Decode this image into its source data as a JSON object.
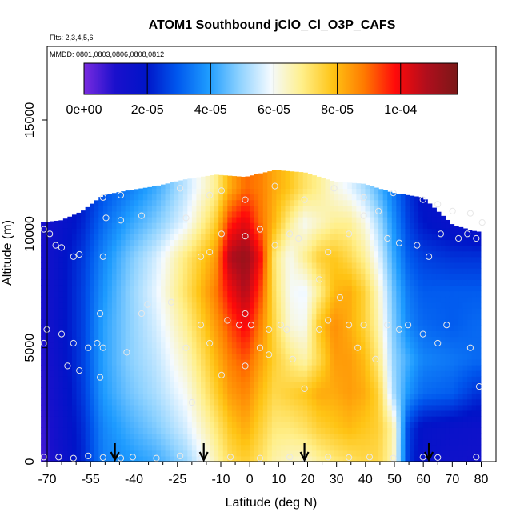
{
  "chart_data": {
    "type": "heatmap",
    "title": "ATOM1 Southbound jClO_Cl_O3P_CAFS",
    "subtitle_flights": "Flts: 2,3,4,5,6",
    "subtitle_dates": "MMDD: 0801,0803,0806,0808,0812",
    "xlabel": "Latitude (deg N)",
    "ylabel": "Altitude (m)",
    "xlim": [
      -70,
      82
    ],
    "ylim": [
      0,
      17500
    ],
    "x_ticks": [
      -70,
      -55,
      -40,
      -25,
      -10,
      0,
      10,
      20,
      30,
      40,
      50,
      60,
      70,
      80
    ],
    "x_tick_labels": [
      "-70",
      "-55",
      "-40",
      "-25",
      "-10",
      "0",
      "10",
      "20",
      "30",
      "40",
      "50",
      "60",
      "70",
      "80"
    ],
    "x_minor_ticks": [
      -65,
      -60,
      -50,
      -45,
      -35,
      -30,
      -20,
      -15,
      -5,
      5,
      15,
      25,
      35,
      45,
      55,
      65,
      75
    ],
    "y_ticks": [
      0,
      5000,
      10000,
      15000
    ],
    "y_tick_labels": [
      "0",
      "5000",
      "10000",
      "15000"
    ],
    "colorbar": {
      "min": 0,
      "max": 0.000118,
      "ticks": [
        0,
        2e-05,
        4e-05,
        6e-05,
        8e-05,
        0.0001
      ],
      "tick_labels": [
        "0e+00",
        "2e-05",
        "4e-05",
        "6e-05",
        "8e-05",
        "1e-04"
      ],
      "colors": [
        "#7a2be0",
        "#1a10cc",
        "#0014c8",
        "#0058ee",
        "#1e9cff",
        "#8ed2ff",
        "#f4faff",
        "#ffef8a",
        "#ffc414",
        "#ff7a00",
        "#ff0a0a",
        "#b00e1c",
        "#7a1818"
      ]
    },
    "grid": false,
    "legend": "colorbar top",
    "profile_top_altitude": [
      [
        -69,
        10500
      ],
      [
        -62,
        10600
      ],
      [
        -55,
        11000
      ],
      [
        -48,
        11700
      ],
      [
        -40,
        11900
      ],
      [
        -30,
        12100
      ],
      [
        -20,
        12400
      ],
      [
        -10,
        12600
      ],
      [
        0,
        12500
      ],
      [
        10,
        12800
      ],
      [
        20,
        12700
      ],
      [
        30,
        12300
      ],
      [
        40,
        12200
      ],
      [
        50,
        11800
      ],
      [
        60,
        11600
      ],
      [
        70,
        10400
      ],
      [
        78,
        10100
      ]
    ],
    "grid_lat": [
      -69,
      -62,
      -55,
      -48,
      -40,
      -30,
      -20,
      -10,
      -5,
      0,
      5,
      10,
      15,
      20,
      25,
      30,
      35,
      40,
      45,
      50,
      55,
      60,
      70,
      78
    ],
    "grid_alt": [
      0,
      1500,
      3000,
      4500,
      6000,
      7500,
      9000,
      10500,
      12000
    ],
    "values": [
      [
        5e-06,
        1.4e-05,
        2.2e-05,
        3.5e-05,
        3.8e-05,
        4.2e-05,
        5e-05,
        6.5e-05,
        7.3e-05,
        7.6e-05,
        7.2e-05,
        6.6e-05,
        6.4e-05,
        6.3e-05,
        6.7e-05,
        7e-05,
        7.2e-05,
        7.4e-05,
        7.4e-05,
        6.5e-05,
        2.5e-05,
        1.6e-05,
        1.4e-05,
        1.3e-05
      ],
      [
        6e-06,
        1.5e-05,
        2.3e-05,
        3.6e-05,
        4.2e-05,
        4.8e-05,
        5.6e-05,
        7e-05,
        7.8e-05,
        8.2e-05,
        7.6e-05,
        7e-05,
        7e-05,
        7.2e-05,
        7.6e-05,
        7.8e-05,
        8e-05,
        7.8e-05,
        7.6e-05,
        6.6e-05,
        2.6e-05,
        1.8e-05,
        1.6e-05,
        1.5e-05
      ],
      [
        7e-06,
        1.6e-05,
        2.5e-05,
        3.9e-05,
        4.6e-05,
        5.2e-05,
        6e-05,
        7.6e-05,
        8.4e-05,
        8.7e-05,
        8e-05,
        7.4e-05,
        7.6e-05,
        7.8e-05,
        8.2e-05,
        8.2e-05,
        8.4e-05,
        8.2e-05,
        7.6e-05,
        5.2e-05,
        3.8e-05,
        3.2e-05,
        3e-05,
        2.4e-05
      ],
      [
        8e-06,
        1.7e-05,
        2.6e-05,
        4e-05,
        4.8e-05,
        5.4e-05,
        6.4e-05,
        8e-05,
        8.8e-05,
        9.2e-05,
        8.4e-05,
        7.6e-05,
        7e-05,
        6.6e-05,
        7.4e-05,
        8.4e-05,
        8.4e-05,
        8e-05,
        7e-05,
        5e-05,
        4.2e-05,
        3.6e-05,
        3.4e-05,
        3.2e-05
      ],
      [
        9e-06,
        1.8e-05,
        2.6e-05,
        4e-05,
        4.8e-05,
        5.6e-05,
        6.8e-05,
        8.4e-05,
        9.3e-05,
        0.0001,
        8.8e-05,
        7.4e-05,
        6.2e-05,
        6e-05,
        7.8e-05,
        8.6e-05,
        8.2e-05,
        7.6e-05,
        6.6e-05,
        4.8e-05,
        3.6e-05,
        3.2e-05,
        3e-05,
        3.2e-05
      ],
      [
        1e-05,
        1.8e-05,
        2.6e-05,
        3.8e-05,
        4.8e-05,
        5.8e-05,
        7.2e-05,
        8.8e-05,
        0.0001,
        0.000108,
        9.4e-05,
        7.2e-05,
        6e-05,
        5.8e-05,
        6.8e-05,
        8e-05,
        8.2e-05,
        7.6e-05,
        6.4e-05,
        4.6e-05,
        3.4e-05,
        3e-05,
        3e-05,
        3e-05
      ],
      [
        1e-05,
        1.8e-05,
        2.5e-05,
        3.6e-05,
        4.6e-05,
        5.6e-05,
        7e-05,
        8.4e-05,
        0.000108,
        0.000113,
        0.0001,
        7e-05,
        6e-05,
        6.8e-05,
        7.6e-05,
        7.8e-05,
        7.4e-05,
        6.8e-05,
        5.8e-05,
        4.2e-05,
        3e-05,
        2.6e-05,
        2.4e-05,
        2.4e-05
      ],
      [
        1e-05,
        1.6e-05,
        2.2e-05,
        3.2e-05,
        4e-05,
        4.8e-05,
        5.8e-05,
        7.6e-05,
        9.6e-05,
        0.000102,
        9e-05,
        8e-05,
        6.8e-05,
        6e-05,
        6.4e-05,
        6.8e-05,
        6.8e-05,
        6.2e-05,
        5.2e-05,
        3.8e-05,
        2.6e-05,
        2e-05,
        1.6e-05,
        1.4e-05
      ],
      [
        1.2e-05,
        1.4e-05,
        2e-05,
        2.8e-05,
        3.4e-05,
        4.2e-05,
        5.4e-05,
        6.8e-05,
        8.2e-05,
        9e-05,
        8.8e-05,
        8.2e-05,
        7.8e-05,
        7.2e-05,
        6.8e-05,
        6.2e-05,
        5.8e-05,
        5.2e-05,
        4.4e-05,
        3.4e-05,
        2.4e-05,
        1.8e-05,
        1.4e-05,
        1.2e-05
      ]
    ],
    "observation_points": [
      [
        -68,
        200
      ],
      [
        -63,
        200
      ],
      [
        -58,
        150
      ],
      [
        -53,
        250
      ],
      [
        -48,
        180
      ],
      [
        -42,
        150
      ],
      [
        -38,
        200
      ],
      [
        -30,
        150
      ],
      [
        -22,
        250
      ],
      [
        -15,
        150
      ],
      [
        -5,
        200
      ],
      [
        5,
        150
      ],
      [
        15,
        200
      ],
      [
        20,
        150
      ],
      [
        28,
        200
      ],
      [
        35,
        180
      ],
      [
        42,
        200
      ],
      [
        50,
        150
      ],
      [
        60,
        200
      ],
      [
        65,
        180
      ],
      [
        78,
        200
      ],
      [
        -67,
        5800
      ],
      [
        -68,
        5200
      ],
      [
        -62,
        5600
      ],
      [
        -60,
        4200
      ],
      [
        -58,
        5200
      ],
      [
        -56,
        4000
      ],
      [
        -53,
        5000
      ],
      [
        -50,
        5200
      ],
      [
        -49,
        3700
      ],
      [
        -48,
        5000
      ],
      [
        -49,
        6500
      ],
      [
        -40,
        4800
      ],
      [
        -35,
        6500
      ],
      [
        -33,
        6900
      ],
      [
        -25,
        7000
      ],
      [
        -20,
        5000
      ],
      [
        -18,
        2600
      ],
      [
        -15,
        6000
      ],
      [
        -12,
        5200
      ],
      [
        -8,
        3800
      ],
      [
        -6,
        6200
      ],
      [
        -2,
        6000
      ],
      [
        0,
        6500
      ],
      [
        0,
        4200
      ],
      [
        2,
        6000
      ],
      [
        5,
        5000
      ],
      [
        8,
        5800
      ],
      [
        8,
        4700
      ],
      [
        12,
        6000
      ],
      [
        14,
        5800
      ],
      [
        16,
        4500
      ],
      [
        20,
        3200
      ],
      [
        25,
        5800
      ],
      [
        28,
        6200
      ],
      [
        32,
        7200
      ],
      [
        35,
        6000
      ],
      [
        38,
        5000
      ],
      [
        40,
        6000
      ],
      [
        44,
        4500
      ],
      [
        48,
        6000
      ],
      [
        52,
        5800
      ],
      [
        55,
        6000
      ],
      [
        60,
        5600
      ],
      [
        65,
        5200
      ],
      [
        68,
        6000
      ],
      [
        76,
        5000
      ],
      [
        79,
        3300
      ],
      [
        -68,
        10200
      ],
      [
        -66,
        10000
      ],
      [
        -64,
        9500
      ],
      [
        -62,
        9400
      ],
      [
        -58,
        9000
      ],
      [
        -56,
        9100
      ],
      [
        -48,
        9000
      ],
      [
        -47,
        10700
      ],
      [
        -42,
        10600
      ],
      [
        -35,
        10800
      ],
      [
        -20,
        10700
      ],
      [
        -15,
        9000
      ],
      [
        -12,
        9200
      ],
      [
        -8,
        10000
      ],
      [
        0,
        9900
      ],
      [
        5,
        10200
      ],
      [
        10,
        9500
      ],
      [
        15,
        10000
      ],
      [
        18,
        9800
      ],
      [
        25,
        8000
      ],
      [
        28,
        9200
      ],
      [
        35,
        10000
      ],
      [
        40,
        10800
      ],
      [
        45,
        11000
      ],
      [
        48,
        9800
      ],
      [
        52,
        9600
      ],
      [
        58,
        9500
      ],
      [
        62,
        9000
      ],
      [
        66,
        10000
      ],
      [
        72,
        9800
      ],
      [
        75,
        10000
      ],
      [
        78,
        9800
      ],
      [
        80,
        10500
      ],
      [
        -48,
        11600
      ],
      [
        -42,
        11700
      ],
      [
        -22,
        12000
      ],
      [
        -12,
        11700
      ],
      [
        -8,
        11900
      ],
      [
        0,
        11500
      ],
      [
        10,
        12100
      ],
      [
        20,
        11500
      ],
      [
        30,
        12000
      ],
      [
        40,
        11600
      ],
      [
        50,
        11800
      ],
      [
        60,
        11500
      ],
      [
        65,
        11300
      ],
      [
        70,
        11000
      ],
      [
        76,
        10900
      ]
    ],
    "arrow_latitudes": [
      -44,
      -14,
      20,
      62
    ]
  }
}
